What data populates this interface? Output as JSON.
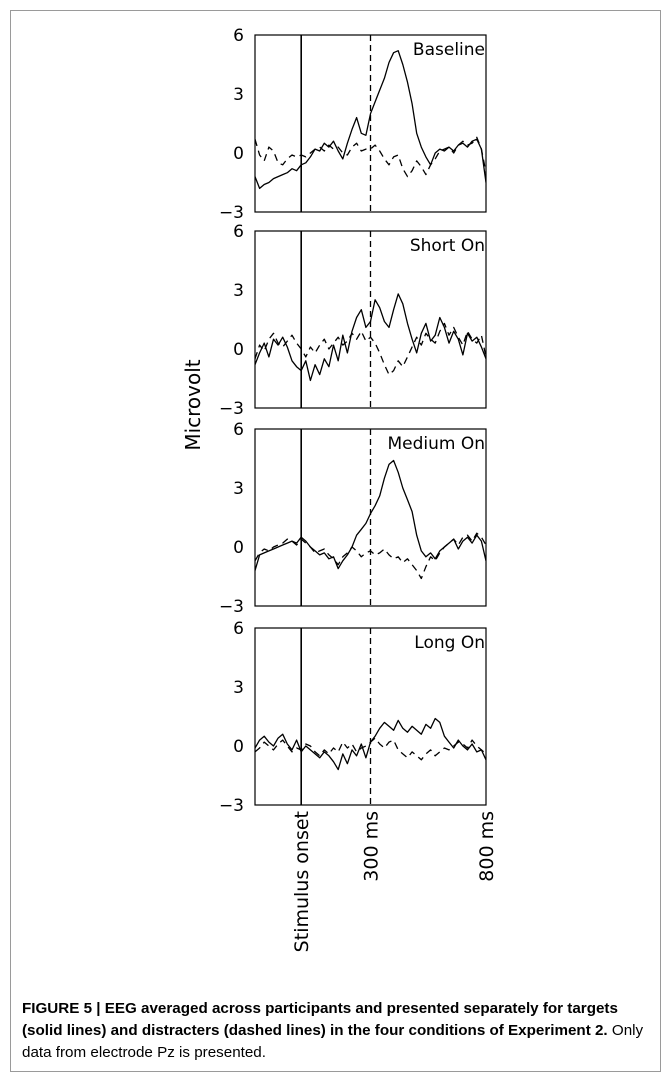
{
  "chart_data": {
    "type": "line",
    "ylabel": "Microvolt",
    "ylim": [
      -3,
      6
    ],
    "yticks": [
      "6",
      "3",
      "0",
      "−3"
    ],
    "ytick_values": [
      6,
      3,
      0,
      -3
    ],
    "xlim_ms": [
      -200,
      800
    ],
    "x_markers": [
      {
        "label": "Stimulus onset",
        "ms": 0,
        "style": "solid"
      },
      {
        "label": "300 ms",
        "ms": 300,
        "style": "dashed"
      },
      {
        "label": "800 ms",
        "ms": 800,
        "style": "none"
      }
    ],
    "panels": [
      {
        "label": "Baseline",
        "series": [
          {
            "style": "solid",
            "x": [
              -200,
              -180,
              -160,
              -140,
              -120,
              -100,
              -80,
              -60,
              -40,
              -20,
              0,
              20,
              40,
              60,
              80,
              100,
              120,
              140,
              160,
              180,
              200,
              220,
              240,
              260,
              280,
              300,
              320,
              340,
              360,
              380,
              400,
              420,
              440,
              460,
              480,
              500,
              520,
              540,
              560,
              580,
              600,
              620,
              640,
              660,
              680,
              700,
              720,
              740,
              760,
              780,
              800
            ],
            "y": [
              -1.2,
              -1.8,
              -1.6,
              -1.5,
              -1.3,
              -1.2,
              -1.1,
              -1.0,
              -0.8,
              -0.9,
              -0.6,
              -0.5,
              -0.2,
              0.2,
              0.1,
              0.5,
              0.3,
              0.6,
              0.1,
              -0.3,
              0.5,
              1.2,
              1.8,
              1.0,
              0.9,
              2.0,
              2.6,
              3.2,
              3.8,
              4.6,
              5.1,
              5.2,
              4.5,
              3.6,
              2.5,
              1.0,
              0.3,
              -0.2,
              -0.6,
              0.0,
              0.2,
              0.1,
              0.3,
              0.1,
              0.4,
              0.5,
              0.3,
              0.6,
              0.7,
              0.2,
              -1.5
            ]
          },
          {
            "style": "dashed",
            "x": [
              -200,
              -180,
              -160,
              -140,
              -120,
              -100,
              -80,
              -60,
              -40,
              -20,
              0,
              20,
              40,
              60,
              80,
              100,
              120,
              140,
              160,
              180,
              200,
              220,
              240,
              260,
              280,
              300,
              320,
              340,
              360,
              380,
              400,
              420,
              440,
              460,
              480,
              500,
              520,
              540,
              560,
              580,
              600,
              620,
              640,
              660,
              680,
              700,
              720,
              740,
              760,
              780,
              800
            ],
            "y": [
              0.7,
              -0.1,
              -0.4,
              0.3,
              0.1,
              -0.5,
              -0.6,
              -0.3,
              -0.1,
              -0.2,
              -0.1,
              -0.2,
              0.0,
              0.2,
              0.3,
              0.1,
              0.4,
              0.2,
              0.3,
              0.0,
              -0.1,
              0.3,
              0.5,
              0.1,
              0.2,
              0.2,
              0.4,
              0.1,
              -0.3,
              -0.6,
              -0.2,
              -0.1,
              -0.8,
              -1.2,
              -0.9,
              -0.4,
              -0.7,
              -1.1,
              -0.6,
              -0.3,
              0.1,
              0.2,
              0.3,
              0.0,
              0.4,
              0.6,
              0.4,
              0.5,
              0.8,
              0.2,
              -1.0
            ]
          }
        ]
      },
      {
        "label": "Short On",
        "series": [
          {
            "style": "solid",
            "x": [
              -200,
              -180,
              -160,
              -140,
              -120,
              -100,
              -80,
              -60,
              -40,
              -20,
              0,
              20,
              40,
              60,
              80,
              100,
              120,
              140,
              160,
              180,
              200,
              220,
              240,
              260,
              280,
              300,
              320,
              340,
              360,
              380,
              400,
              420,
              440,
              460,
              480,
              500,
              520,
              540,
              560,
              580,
              600,
              620,
              640,
              660,
              680,
              700,
              720,
              740,
              760,
              780,
              800
            ],
            "y": [
              -0.8,
              -0.2,
              0.3,
              -0.4,
              0.5,
              0.2,
              0.6,
              0.1,
              -0.6,
              -0.9,
              -1.1,
              -0.6,
              -1.6,
              -0.8,
              -1.3,
              -0.5,
              -0.9,
              0.2,
              -0.6,
              0.7,
              -0.2,
              0.9,
              1.6,
              2.0,
              1.1,
              1.4,
              2.5,
              2.1,
              1.4,
              1.1,
              2.0,
              2.8,
              2.3,
              1.3,
              0.5,
              -0.2,
              0.8,
              1.3,
              0.4,
              0.7,
              1.6,
              1.1,
              0.3,
              0.9,
              0.5,
              -0.3,
              0.8,
              0.4,
              0.6,
              0.1,
              -0.5
            ]
          },
          {
            "style": "dashed",
            "x": [
              -200,
              -180,
              -160,
              -140,
              -120,
              -100,
              -80,
              -60,
              -40,
              -20,
              0,
              20,
              40,
              60,
              80,
              100,
              120,
              140,
              160,
              180,
              200,
              220,
              240,
              260,
              280,
              300,
              320,
              340,
              360,
              380,
              400,
              420,
              440,
              460,
              480,
              500,
              520,
              540,
              560,
              580,
              600,
              620,
              640,
              660,
              680,
              700,
              720,
              740,
              760,
              780,
              800
            ],
            "y": [
              -0.5,
              0.2,
              -0.1,
              0.5,
              0.8,
              0.3,
              0.1,
              0.4,
              0.7,
              0.3,
              0.0,
              -0.4,
              0.1,
              -0.2,
              0.2,
              0.5,
              0.0,
              0.3,
              0.6,
              0.2,
              0.4,
              0.8,
              0.5,
              0.9,
              0.4,
              0.6,
              0.3,
              -0.2,
              -0.8,
              -1.3,
              -1.1,
              -0.6,
              -0.9,
              -0.4,
              0.1,
              0.6,
              0.2,
              0.8,
              0.5,
              0.3,
              0.9,
              1.3,
              0.7,
              1.1,
              0.6,
              0.2,
              0.9,
              0.5,
              0.3,
              0.7,
              -0.4
            ]
          }
        ]
      },
      {
        "label": "Medium On",
        "series": [
          {
            "style": "solid",
            "x": [
              -200,
              -180,
              -160,
              -140,
              -120,
              -100,
              -80,
              -60,
              -40,
              -20,
              0,
              20,
              40,
              60,
              80,
              100,
              120,
              140,
              160,
              180,
              200,
              220,
              240,
              260,
              280,
              300,
              320,
              340,
              360,
              380,
              400,
              420,
              440,
              460,
              480,
              500,
              520,
              540,
              560,
              580,
              600,
              620,
              640,
              660,
              680,
              700,
              720,
              740,
              760,
              780,
              800
            ],
            "y": [
              -1.2,
              -0.4,
              -0.3,
              -0.2,
              -0.1,
              0.0,
              0.1,
              0.2,
              0.3,
              0.2,
              0.5,
              0.3,
              0.0,
              -0.2,
              -0.4,
              -0.3,
              -0.6,
              -0.5,
              -1.1,
              -0.7,
              -0.4,
              0.0,
              0.6,
              0.9,
              1.2,
              1.7,
              2.1,
              2.6,
              3.5,
              4.2,
              4.4,
              3.8,
              3.0,
              2.4,
              1.8,
              0.6,
              -0.2,
              -0.5,
              -0.3,
              -0.6,
              -0.2,
              0.0,
              0.2,
              0.4,
              -0.1,
              0.3,
              0.5,
              0.2,
              0.6,
              0.3,
              -0.7
            ]
          },
          {
            "style": "dashed",
            "x": [
              -200,
              -180,
              -160,
              -140,
              -120,
              -100,
              -80,
              -60,
              -40,
              -20,
              0,
              20,
              40,
              60,
              80,
              100,
              120,
              140,
              160,
              180,
              200,
              220,
              240,
              260,
              280,
              300,
              320,
              340,
              360,
              380,
              400,
              420,
              440,
              460,
              480,
              500,
              520,
              540,
              560,
              580,
              600,
              620,
              640,
              660,
              680,
              700,
              720,
              740,
              760,
              780,
              800
            ],
            "y": [
              -0.7,
              -0.3,
              -0.1,
              -0.2,
              0.0,
              0.1,
              0.2,
              0.4,
              0.3,
              0.1,
              0.4,
              0.2,
              0.0,
              -0.3,
              -0.2,
              -0.1,
              -0.4,
              -0.6,
              -0.9,
              -0.5,
              -0.3,
              0.0,
              -0.2,
              -0.5,
              -0.3,
              -0.2,
              -0.4,
              -0.3,
              -0.1,
              -0.4,
              -0.6,
              -0.5,
              -0.8,
              -0.6,
              -0.9,
              -1.2,
              -1.6,
              -1.0,
              -0.5,
              -0.7,
              -0.3,
              0.0,
              0.2,
              0.4,
              0.1,
              0.5,
              0.6,
              0.3,
              0.7,
              0.5,
              0.1
            ]
          }
        ]
      },
      {
        "label": "Long On",
        "series": [
          {
            "style": "solid",
            "x": [
              -200,
              -180,
              -160,
              -140,
              -120,
              -100,
              -80,
              -60,
              -40,
              -20,
              0,
              20,
              40,
              60,
              80,
              100,
              120,
              140,
              160,
              180,
              200,
              220,
              240,
              260,
              280,
              300,
              320,
              340,
              360,
              380,
              400,
              420,
              440,
              460,
              480,
              500,
              520,
              540,
              560,
              580,
              600,
              620,
              640,
              660,
              680,
              700,
              720,
              740,
              760,
              780,
              800
            ],
            "y": [
              -0.1,
              0.3,
              0.5,
              0.2,
              0.0,
              0.4,
              0.6,
              0.1,
              -0.2,
              0.3,
              -0.3,
              0.0,
              -0.2,
              -0.4,
              -0.6,
              -0.3,
              -0.5,
              -0.8,
              -1.2,
              -0.4,
              -0.9,
              -0.2,
              -0.5,
              0.1,
              -0.6,
              0.2,
              0.5,
              0.9,
              1.2,
              1.0,
              0.8,
              1.3,
              0.9,
              0.7,
              1.0,
              0.8,
              0.6,
              1.1,
              0.9,
              1.4,
              1.2,
              0.5,
              0.2,
              -0.1,
              0.3,
              0.0,
              -0.2,
              0.1,
              -0.3,
              -0.2,
              -0.7
            ]
          },
          {
            "style": "dashed",
            "x": [
              -200,
              -180,
              -160,
              -140,
              -120,
              -100,
              -80,
              -60,
              -40,
              -20,
              0,
              20,
              40,
              60,
              80,
              100,
              120,
              140,
              160,
              180,
              200,
              220,
              240,
              260,
              280,
              300,
              320,
              340,
              360,
              380,
              400,
              420,
              440,
              460,
              480,
              500,
              520,
              540,
              560,
              580,
              600,
              620,
              640,
              660,
              680,
              700,
              720,
              740,
              760,
              780,
              800
            ],
            "y": [
              -0.3,
              -0.1,
              0.2,
              0.0,
              -0.2,
              0.1,
              0.3,
              0.0,
              -0.3,
              -0.1,
              -0.2,
              0.1,
              0.0,
              -0.3,
              -0.5,
              -0.2,
              -0.4,
              -0.1,
              -0.3,
              0.2,
              -0.1,
              0.1,
              -0.3,
              -0.1,
              0.0,
              0.2,
              0.4,
              0.1,
              -0.1,
              0.2,
              0.3,
              -0.2,
              -0.4,
              -0.6,
              -0.3,
              -0.5,
              -0.7,
              -0.4,
              -0.2,
              -0.5,
              -0.3,
              -0.1,
              -0.2,
              0.0,
              0.2,
              0.1,
              -0.1,
              0.3,
              0.0,
              -0.2,
              -0.4
            ]
          }
        ]
      }
    ]
  },
  "caption": {
    "bold": "FIGURE 5 | EEG averaged across participants and presented separately for targets (solid lines) and distracters (dashed lines) in the four conditions of Experiment 2.",
    "rest": " Only data from electrode Pz is presented."
  }
}
